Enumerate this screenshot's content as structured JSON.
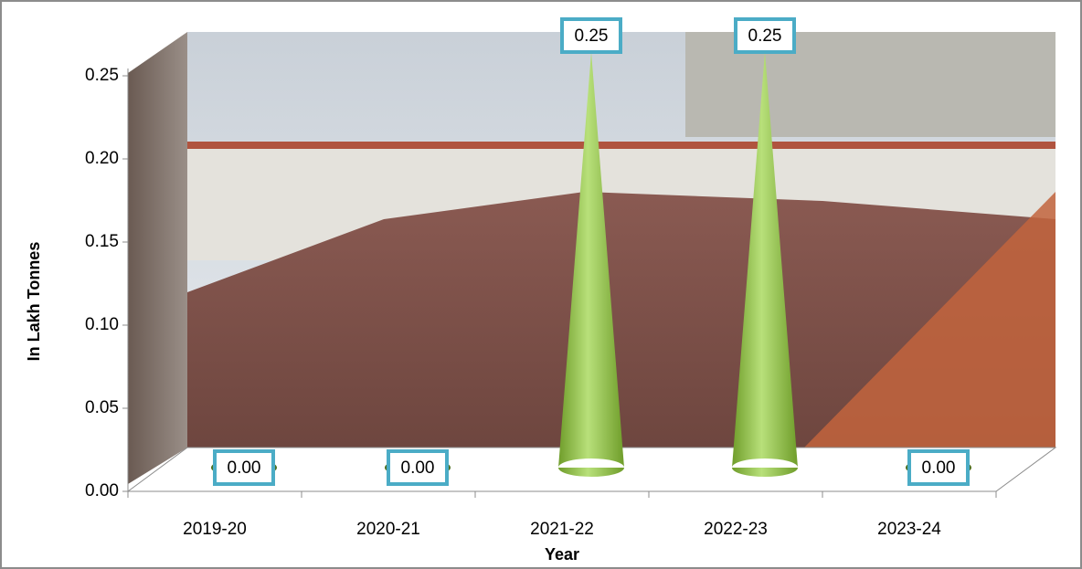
{
  "chart_data": {
    "type": "cone",
    "y_axis_label": "In Lakh Tonnes",
    "x_axis_label": "Year",
    "categories": [
      "2019-20",
      "2020-21",
      "2021-22",
      "2022-23",
      "2023-24"
    ],
    "values": [
      0,
      0,
      0.25,
      0.25,
      0
    ],
    "value_labels": [
      "0.00",
      "0.00",
      "0.25",
      "0.25",
      "0.00"
    ],
    "color": "#8dc63f",
    "ylim": [
      0,
      0.25
    ],
    "yticks": [
      {
        "value": 0,
        "label": "0.00"
      },
      {
        "value": 0.05,
        "label": "0.05"
      },
      {
        "value": 0.1,
        "label": "0.10"
      },
      {
        "value": 0.15,
        "label": "0.15"
      },
      {
        "value": 0.2,
        "label": "0.20"
      },
      {
        "value": 0.25,
        "label": "0.25"
      }
    ]
  }
}
